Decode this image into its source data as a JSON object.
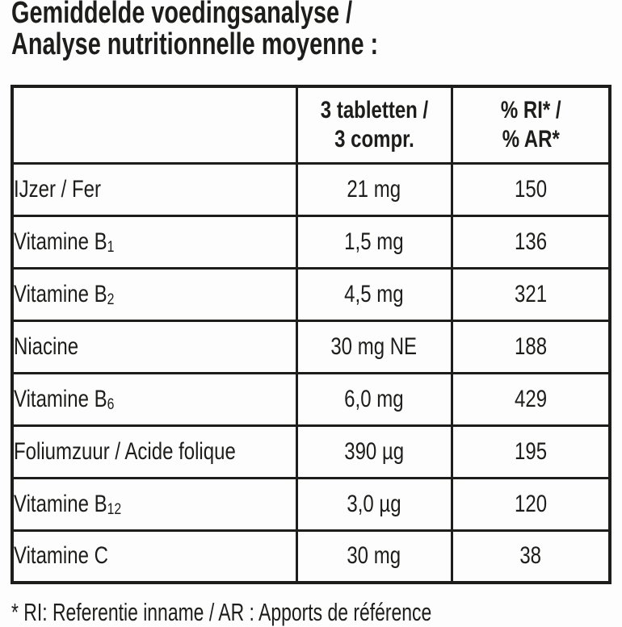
{
  "title": {
    "line1": "Gemiddelde voedingsanalyse /",
    "line2": "Analyse nutritionnelle moyenne :"
  },
  "table": {
    "header": {
      "product_col": "",
      "dose_line1": "3 tabletten /",
      "dose_line2": "3 compr.",
      "ri_line1": "% RI* /",
      "ri_line2": "% AR*"
    },
    "rows": [
      {
        "name": "IJzer / Fer",
        "sub": "",
        "amount": "21 mg",
        "ri": "150"
      },
      {
        "name": "Vitamine B",
        "sub": "1",
        "amount": "1,5 mg",
        "ri": "136"
      },
      {
        "name": "Vitamine B",
        "sub": "2",
        "amount": "4,5 mg",
        "ri": "321"
      },
      {
        "name": "Niacine",
        "sub": "",
        "amount": "30 mg NE",
        "ri": "188"
      },
      {
        "name": "Vitamine B",
        "sub": "6",
        "amount": "6,0 mg",
        "ri": "429"
      },
      {
        "name": "Foliumzuur / Acide folique",
        "sub": "",
        "amount": "390 µg",
        "ri": "195"
      },
      {
        "name": "Vitamine B",
        "sub": "12",
        "amount": "3,0 µg",
        "ri": "120"
      },
      {
        "name": "Vitamine C",
        "sub": "",
        "amount": "30 mg",
        "ri": "38"
      }
    ]
  },
  "footnote": "* RI: Referentie inname / AR : Apports de référence",
  "colors": {
    "text": "#1d1d1b",
    "border": "#1d1d1b",
    "background": "#fdfdfd"
  }
}
